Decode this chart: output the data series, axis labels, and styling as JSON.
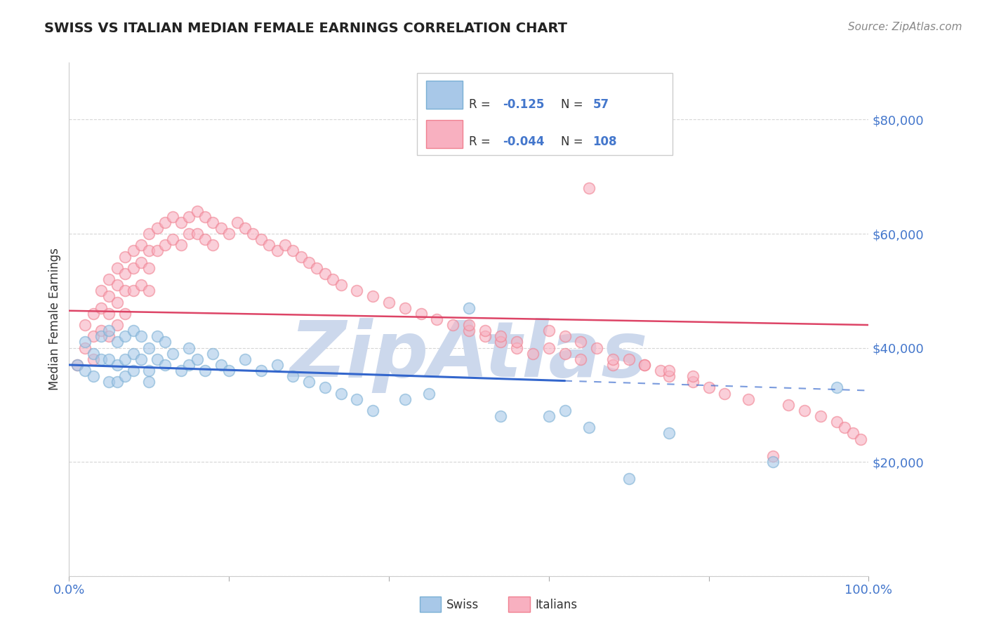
{
  "title": "SWISS VS ITALIAN MEDIAN FEMALE EARNINGS CORRELATION CHART",
  "source_text": "Source: ZipAtlas.com",
  "ylabel": "Median Female Earnings",
  "y_tick_values": [
    0,
    20000,
    40000,
    60000,
    80000
  ],
  "xlim": [
    0.0,
    1.0
  ],
  "ylim": [
    0,
    90000
  ],
  "swiss_color_face": "#a8c8e8",
  "swiss_color_edge": "#7aafd4",
  "italian_color_face": "#f8b0c0",
  "italian_color_edge": "#f08090",
  "swiss_line_color": "#3366cc",
  "italian_line_color": "#dd4466",
  "background_color": "#ffffff",
  "grid_color": "#cccccc",
  "watermark_text": "ZipAtlas",
  "watermark_color": "#ccd8ec",
  "title_color": "#222222",
  "axis_label_color": "#333333",
  "tick_label_color": "#4477cc",
  "source_color": "#888888",
  "swiss_trend_x": [
    0.0,
    1.0
  ],
  "swiss_trend_y": [
    37000,
    32500
  ],
  "swiss_trend_solid_end": 0.62,
  "italian_trend_x": [
    0.0,
    1.0
  ],
  "italian_trend_y": [
    46500,
    44000
  ],
  "swiss_x": [
    0.01,
    0.02,
    0.02,
    0.03,
    0.03,
    0.04,
    0.04,
    0.05,
    0.05,
    0.05,
    0.06,
    0.06,
    0.06,
    0.07,
    0.07,
    0.07,
    0.08,
    0.08,
    0.08,
    0.09,
    0.09,
    0.1,
    0.1,
    0.1,
    0.11,
    0.11,
    0.12,
    0.12,
    0.13,
    0.14,
    0.15,
    0.15,
    0.16,
    0.17,
    0.18,
    0.19,
    0.2,
    0.22,
    0.24,
    0.26,
    0.28,
    0.3,
    0.32,
    0.34,
    0.36,
    0.38,
    0.42,
    0.45,
    0.5,
    0.54,
    0.6,
    0.62,
    0.65,
    0.7,
    0.75,
    0.88,
    0.96
  ],
  "swiss_y": [
    37000,
    41000,
    36000,
    39000,
    35000,
    42000,
    38000,
    43000,
    38000,
    34000,
    41000,
    37000,
    34000,
    42000,
    38000,
    35000,
    43000,
    39000,
    36000,
    42000,
    38000,
    40000,
    36000,
    34000,
    42000,
    38000,
    41000,
    37000,
    39000,
    36000,
    40000,
    37000,
    38000,
    36000,
    39000,
    37000,
    36000,
    38000,
    36000,
    37000,
    35000,
    34000,
    33000,
    32000,
    31000,
    29000,
    31000,
    32000,
    47000,
    28000,
    28000,
    29000,
    26000,
    17000,
    25000,
    20000,
    33000
  ],
  "italian_x": [
    0.01,
    0.02,
    0.02,
    0.03,
    0.03,
    0.03,
    0.04,
    0.04,
    0.04,
    0.05,
    0.05,
    0.05,
    0.05,
    0.06,
    0.06,
    0.06,
    0.06,
    0.07,
    0.07,
    0.07,
    0.07,
    0.08,
    0.08,
    0.08,
    0.09,
    0.09,
    0.09,
    0.1,
    0.1,
    0.1,
    0.1,
    0.11,
    0.11,
    0.12,
    0.12,
    0.13,
    0.13,
    0.14,
    0.14,
    0.15,
    0.15,
    0.16,
    0.16,
    0.17,
    0.17,
    0.18,
    0.18,
    0.19,
    0.2,
    0.21,
    0.22,
    0.23,
    0.24,
    0.25,
    0.26,
    0.27,
    0.28,
    0.29,
    0.3,
    0.31,
    0.32,
    0.33,
    0.34,
    0.36,
    0.38,
    0.4,
    0.42,
    0.44,
    0.46,
    0.48,
    0.5,
    0.52,
    0.54,
    0.56,
    0.58,
    0.6,
    0.62,
    0.64,
    0.65,
    0.68,
    0.7,
    0.72,
    0.74,
    0.75,
    0.78,
    0.8,
    0.82,
    0.85,
    0.88,
    0.9,
    0.92,
    0.94,
    0.96,
    0.97,
    0.98,
    0.99,
    0.68,
    0.72,
    0.75,
    0.78,
    0.6,
    0.62,
    0.64,
    0.66,
    0.5,
    0.52,
    0.54,
    0.56
  ],
  "italian_y": [
    37000,
    44000,
    40000,
    42000,
    46000,
    38000,
    50000,
    47000,
    43000,
    52000,
    49000,
    46000,
    42000,
    54000,
    51000,
    48000,
    44000,
    56000,
    53000,
    50000,
    46000,
    57000,
    54000,
    50000,
    58000,
    55000,
    51000,
    60000,
    57000,
    54000,
    50000,
    61000,
    57000,
    62000,
    58000,
    63000,
    59000,
    62000,
    58000,
    63000,
    60000,
    64000,
    60000,
    63000,
    59000,
    62000,
    58000,
    61000,
    60000,
    62000,
    61000,
    60000,
    59000,
    58000,
    57000,
    58000,
    57000,
    56000,
    55000,
    54000,
    53000,
    52000,
    51000,
    50000,
    49000,
    48000,
    47000,
    46000,
    45000,
    44000,
    43000,
    42000,
    41000,
    40000,
    39000,
    40000,
    39000,
    38000,
    68000,
    37000,
    38000,
    37000,
    36000,
    35000,
    34000,
    33000,
    32000,
    31000,
    21000,
    30000,
    29000,
    28000,
    27000,
    26000,
    25000,
    24000,
    38000,
    37000,
    36000,
    35000,
    43000,
    42000,
    41000,
    40000,
    44000,
    43000,
    42000,
    41000
  ]
}
